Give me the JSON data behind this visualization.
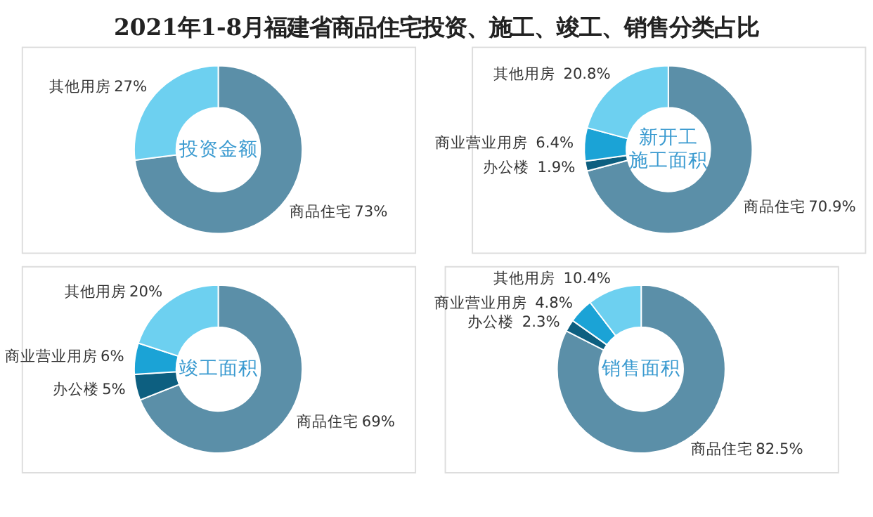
{
  "chart_data": [
    {
      "type": "donut",
      "title": "投资金额",
      "annotations": [
        "2021年1-8月福建省商品住宅投资、施工、竣工、销售分类占比"
      ],
      "categories": [
        "商品住宅",
        "其他用房"
      ],
      "values": [
        73,
        27
      ],
      "value_labels": [
        "73%",
        "27%"
      ],
      "colors": [
        "#5b8fa8",
        "#6dd0f0"
      ]
    },
    {
      "type": "donut",
      "title": "新开工施工面积",
      "categories": [
        "商品住宅",
        "办公楼",
        "商业营业用房",
        "其他用房"
      ],
      "values": [
        70.9,
        1.9,
        6.4,
        20.8
      ],
      "value_labels": [
        "70.9%",
        "1.9%",
        "6.4%",
        "20.8%"
      ],
      "colors": [
        "#5b8fa8",
        "#0d5f80",
        "#1ba3d6",
        "#6dd0f0"
      ]
    },
    {
      "type": "donut",
      "title": "竣工面积",
      "categories": [
        "商品住宅",
        "办公楼",
        "商业营业用房",
        "其他用房"
      ],
      "values": [
        69,
        5,
        6,
        20
      ],
      "value_labels": [
        "69%",
        "5%",
        "6%",
        "20%"
      ],
      "colors": [
        "#5b8fa8",
        "#0d5f80",
        "#1ba3d6",
        "#6dd0f0"
      ]
    },
    {
      "type": "donut",
      "title": "销售面积",
      "categories": [
        "商品住宅",
        "办公楼",
        "商业营业用房",
        "其他用房"
      ],
      "values": [
        82.5,
        2.3,
        4.8,
        10.4
      ],
      "value_labels": [
        "82.5%",
        "2.3%",
        "4.8%",
        "10.4%"
      ],
      "colors": [
        "#5b8fa8",
        "#0d5f80",
        "#1ba3d6",
        "#6dd0f0"
      ]
    }
  ]
}
